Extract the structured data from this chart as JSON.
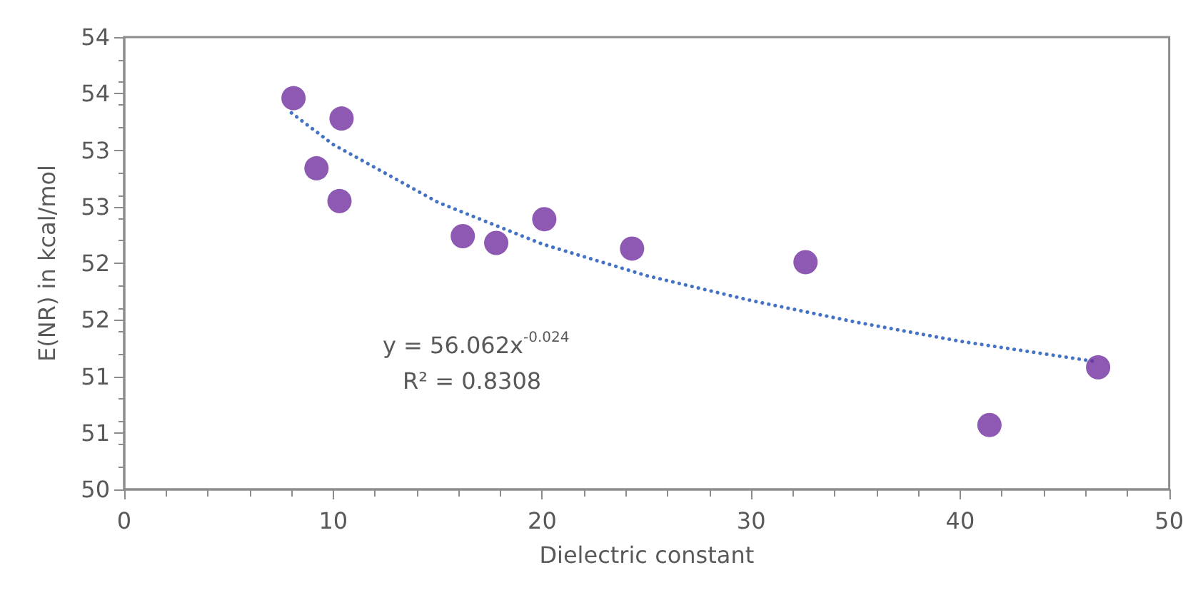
{
  "chart_data": {
    "type": "scatter",
    "xlabel": "Dielectric constant",
    "ylabel": "E(NR) in kcal/mol",
    "xlim": [
      0,
      50
    ],
    "xticks": [
      0,
      10,
      20,
      30,
      40,
      50
    ],
    "ylim": [
      50,
      54
    ],
    "yticks": [
      50,
      {
        "value": 50.5,
        "label": "51"
      },
      51,
      {
        "value": 51.5,
        "label": "52"
      },
      52,
      {
        "value": 52.5,
        "label": "53"
      },
      53,
      {
        "value": 53.5,
        "label": "54"
      },
      54
    ],
    "grid": false,
    "annotations": [
      "y = 56.062x$^{-0.024}$",
      "R² = 0.8308"
    ],
    "series": [
      {
        "marker": "circle",
        "color": "#7030a0",
        "x": [
          8.1,
          9.2,
          10.3,
          10.4,
          16.2,
          17.8,
          20.1,
          24.3,
          32.6,
          41.4,
          46.6
        ],
        "values": [
          53.46,
          52.84,
          52.55,
          53.28,
          52.24,
          52.18,
          52.39,
          52.13,
          52.01,
          50.57,
          51.08
        ]
      },
      {
        "type": "line",
        "marker": "none",
        "line_style": "dotted",
        "color": "#4472c4",
        "x": [
          8,
          10,
          15,
          20,
          25,
          30,
          35,
          40,
          46.5
        ],
        "values": [
          53.33,
          53.05,
          52.54,
          52.17,
          51.89,
          51.67,
          51.48,
          51.31,
          51.13
        ]
      }
    ]
  }
}
